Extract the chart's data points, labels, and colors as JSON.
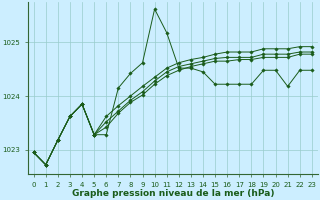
{
  "title": "Graphe pression niveau de la mer (hPa)",
  "bg_color": "#cceeff",
  "grid_color": "#99cccc",
  "line_color": "#1a5c1a",
  "marker_color": "#1a5c1a",
  "xlim": [
    -0.5,
    23.5
  ],
  "ylim": [
    1022.55,
    1025.75
  ],
  "yticks": [
    1023,
    1024,
    1025
  ],
  "xtick_labels": [
    "0",
    "1",
    "2",
    "3",
    "4",
    "5",
    "6",
    "7",
    "8",
    "9",
    "10",
    "11",
    "12",
    "13",
    "14",
    "15",
    "16",
    "17",
    "18",
    "19",
    "20",
    "21",
    "22",
    "23"
  ],
  "series": [
    [
      1022.95,
      1022.72,
      1023.18,
      1023.62,
      1023.85,
      1023.28,
      1023.28,
      1024.15,
      1024.42,
      1024.62,
      1025.62,
      1025.18,
      1024.52,
      1024.52,
      1024.45,
      1024.22,
      1024.22,
      1024.22,
      1024.22,
      1024.48,
      1024.48,
      1024.18,
      1024.48,
      1024.48
    ],
    [
      1022.95,
      1022.72,
      1023.18,
      1023.62,
      1023.85,
      1023.28,
      1023.62,
      1023.82,
      1024.0,
      1024.18,
      1024.35,
      1024.52,
      1024.62,
      1024.68,
      1024.72,
      1024.78,
      1024.82,
      1024.82,
      1024.82,
      1024.88,
      1024.88,
      1024.88,
      1024.92,
      1024.92
    ],
    [
      1022.95,
      1022.72,
      1023.18,
      1023.62,
      1023.85,
      1023.28,
      1023.42,
      1023.68,
      1023.88,
      1024.02,
      1024.22,
      1024.38,
      1024.48,
      1024.55,
      1024.6,
      1024.65,
      1024.65,
      1024.68,
      1024.68,
      1024.72,
      1024.72,
      1024.72,
      1024.78,
      1024.78
    ],
    [
      1022.95,
      1022.72,
      1023.18,
      1023.62,
      1023.85,
      1023.28,
      1023.52,
      1023.72,
      1023.92,
      1024.08,
      1024.28,
      1024.45,
      1024.55,
      1024.6,
      1024.65,
      1024.7,
      1024.72,
      1024.72,
      1024.72,
      1024.78,
      1024.78,
      1024.78,
      1024.82,
      1024.82
    ]
  ],
  "figsize": [
    3.2,
    2.0
  ],
  "dpi": 100,
  "title_fontsize": 6.5,
  "tick_fontsize": 5.0,
  "ylabel_fontsize": 5.0
}
